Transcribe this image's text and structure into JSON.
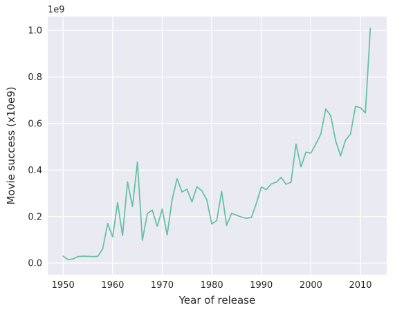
{
  "chart_data": {
    "type": "line",
    "xlabel": "Year of release",
    "ylabel": "Movie success (x10e9)",
    "y_offset_label": "1e9",
    "xlim": [
      1946.9,
      1565.3
    ],
    "ylim": [
      -0.05,
      1.06
    ],
    "x_ticks": [
      1950,
      1960,
      1970,
      1980,
      1990,
      2000,
      2010
    ],
    "y_ticks": [
      0.0,
      0.2,
      0.4,
      0.6,
      0.8,
      1.0
    ],
    "grid": true,
    "background_color": "#eaeaf2",
    "line_color": "#66c2a5",
    "series": [
      {
        "x": [
          1950,
          1951,
          1952,
          1953,
          1954,
          1955,
          1956,
          1957,
          1958,
          1959,
          1960,
          1961,
          1962,
          1963,
          1964,
          1965,
          1966,
          1967,
          1968,
          1969,
          1970,
          1971,
          1972,
          1973,
          1974,
          1975,
          1976,
          1977,
          1978,
          1979,
          1980,
          1981,
          1982,
          1983,
          1984,
          1985,
          1986,
          1987,
          1988,
          1989,
          1990,
          1991,
          1992,
          1993,
          1994,
          1995,
          1996,
          1997,
          1998,
          1999,
          2000,
          2001,
          2002,
          2003,
          2004,
          2005,
          2006,
          2007,
          2008,
          2009,
          2010,
          2011,
          2012
        ],
        "y": [
          0.03,
          0.015,
          0.018,
          0.028,
          0.03,
          0.029,
          0.028,
          0.029,
          0.062,
          0.17,
          0.112,
          0.26,
          0.118,
          0.35,
          0.243,
          0.435,
          0.098,
          0.213,
          0.228,
          0.158,
          0.232,
          0.121,
          0.273,
          0.363,
          0.306,
          0.318,
          0.263,
          0.328,
          0.311,
          0.272,
          0.168,
          0.183,
          0.308,
          0.162,
          0.214,
          0.206,
          0.198,
          0.193,
          0.196,
          0.257,
          0.327,
          0.316,
          0.34,
          0.348,
          0.368,
          0.339,
          0.348,
          0.512,
          0.414,
          0.477,
          0.473,
          0.512,
          0.554,
          0.663,
          0.634,
          0.526,
          0.461,
          0.529,
          0.555,
          0.674,
          0.668,
          0.646,
          1.01
        ]
      }
    ]
  }
}
